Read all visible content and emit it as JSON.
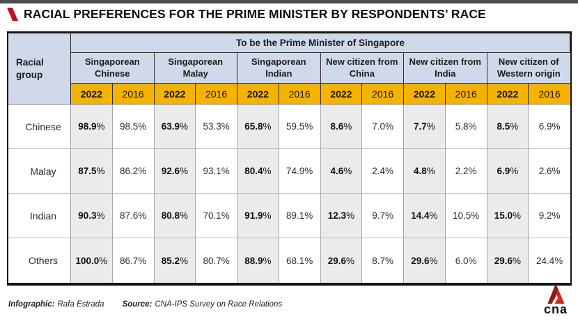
{
  "title": "RACIAL PREFERENCES FOR THE PRIME MINISTER BY RESPONDENTS’ RACE",
  "chart_data": {
    "type": "table",
    "title": "RACIAL PREFERENCES FOR THE PRIME MINISTER BY RESPONDENTS’ RACE",
    "row_header": "Racial group",
    "column_span_header": "To be the Prime Minister of Singapore",
    "column_groups": [
      "Singaporean Chinese",
      "Singaporean Malay",
      "Singaporean Indian",
      "New citizen from China",
      "New citizen from India",
      "New citizen of Western origin"
    ],
    "sub_columns": [
      "2022",
      "2016"
    ],
    "highlighted_sub_column": "2022",
    "categories": [
      "Chinese",
      "Malay",
      "Indian",
      "Others"
    ],
    "rows": [
      {
        "label": "Chinese",
        "values": [
          "98.9%",
          "98.5%",
          "63.9%",
          "53.3%",
          "65.8%",
          "59.5%",
          "8.6%",
          "7.0%",
          "7.7%",
          "5.8%",
          "8.5%",
          "6.9%"
        ]
      },
      {
        "label": "Malay",
        "values": [
          "87.5%",
          "86.2%",
          "92.6%",
          "93.1%",
          "80.4%",
          "74.9%",
          "4.6%",
          "2.4%",
          "4.8%",
          "2.2%",
          "6.9%",
          "2.6%"
        ]
      },
      {
        "label": "Indian",
        "values": [
          "90.3%",
          "87.6%",
          "80.8%",
          "70.1%",
          "91.9%",
          "89.1%",
          "12.3%",
          "9.7%",
          "14.4%",
          "10.5%",
          "15.0%",
          "9.2%"
        ]
      },
      {
        "label": "Others",
        "values": [
          "100.0%",
          "86.7%",
          "85.2%",
          "80.7%",
          "88.9%",
          "68.1%",
          "29.6%",
          "8.7%",
          "29.6%",
          "6.0%",
          "29.6%",
          "24.4%"
        ]
      }
    ]
  },
  "footer": {
    "infographic_label": "Infographic:",
    "infographic_credit": "Rafa Estrada",
    "source_label": "Source:",
    "source_text": "CNA-IPS Survey on Race Relations"
  },
  "logo": {
    "text": "cna"
  },
  "colors": {
    "accent_red": "#c0131f",
    "header_blue": "#cfd9e9",
    "highlight_yellow": "#f5b301",
    "col_2022_bg": "#ebebeb",
    "topbar_gray": "#4d4d4d",
    "logo_red": "#d2251c",
    "logo_dark_red": "#8f1b14"
  }
}
